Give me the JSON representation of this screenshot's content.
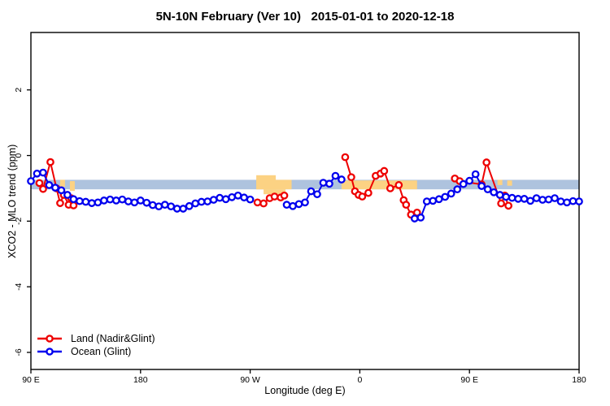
{
  "chart_data": {
    "type": "line",
    "title": "5N-10N February (Ver 10)   2015-01-01 to 2020-12-18",
    "xlabel": "Longitude (deg E)",
    "ylabel": "XCO2 - MLO trend (ppm)",
    "xlim": [
      90,
      540
    ],
    "ylim": [
      -6.52,
      3.75
    ],
    "grid": false,
    "legend_position": "bottom-left",
    "x_ticks": [
      {
        "pos": 90,
        "label": "90 E"
      },
      {
        "pos": 180,
        "label": "180"
      },
      {
        "pos": 270,
        "label": "90 W"
      },
      {
        "pos": 360,
        "label": "0"
      },
      {
        "pos": 450,
        "label": "90 E"
      },
      {
        "pos": 540,
        "label": "180"
      }
    ],
    "y_ticks": [
      {
        "pos": 2,
        "label": "2"
      },
      {
        "pos": 0,
        "label": "0"
      },
      {
        "pos": -2,
        "label": "-2"
      },
      {
        "pos": -4,
        "label": "-4"
      },
      {
        "pos": -6,
        "label": "-6"
      }
    ],
    "band": {
      "from": -0.74,
      "to": -1.03,
      "color": "#aec3de"
    },
    "patches": {
      "color": "#fcd283",
      "rects": [
        {
          "x1": 114,
          "x2": 118,
          "y1": -0.74,
          "y2": -0.95
        },
        {
          "x1": 122,
          "x2": 126,
          "y1": -0.78,
          "y2": -1.08
        },
        {
          "x1": 275,
          "x2": 291,
          "y1": -0.6,
          "y2": -1.03
        },
        {
          "x1": 275,
          "x2": 304,
          "y1": -0.74,
          "y2": -1.03
        },
        {
          "x1": 281,
          "x2": 299,
          "y1": -1.03,
          "y2": -1.18
        },
        {
          "x1": 345,
          "x2": 407,
          "y1": -0.76,
          "y2": -1.03
        },
        {
          "x1": 473,
          "x2": 477,
          "y1": -0.74,
          "y2": -0.9
        },
        {
          "x1": 481,
          "x2": 485,
          "y1": -0.76,
          "y2": -0.92
        }
      ]
    },
    "series": [
      {
        "name": "Land (Nadir&Glint)",
        "color": "#ee0000",
        "marker": "open-circle",
        "segments": [
          [
            [
              97,
              -0.84
            ],
            [
              100,
              -1.02
            ],
            [
              106,
              -0.2
            ],
            [
              111,
              -1.0
            ],
            [
              114,
              -1.45
            ],
            [
              117,
              -1.2
            ],
            [
              121,
              -1.5
            ],
            [
              123,
              -1.3
            ],
            [
              125,
              -1.52
            ]
          ],
          [
            [
              276,
              -1.43
            ],
            [
              281,
              -1.46
            ],
            [
              286,
              -1.3
            ],
            [
              290,
              -1.25
            ],
            [
              295,
              -1.28
            ],
            [
              298,
              -1.22
            ]
          ],
          [
            [
              348,
              -0.05
            ],
            [
              353,
              -0.66
            ],
            [
              356,
              -1.09
            ],
            [
              359,
              -1.2
            ],
            [
              362,
              -1.25
            ],
            [
              367,
              -1.14
            ],
            [
              373,
              -0.62
            ],
            [
              377,
              -0.55
            ],
            [
              380,
              -0.47
            ],
            [
              385,
              -1.0
            ],
            [
              392,
              -0.9
            ],
            [
              396,
              -1.36
            ],
            [
              398,
              -1.5
            ],
            [
              402,
              -1.8
            ],
            [
              407,
              -1.74
            ]
          ],
          [
            [
              438,
              -0.7
            ],
            [
              442,
              -0.78
            ],
            [
              460,
              -0.88
            ],
            [
              464,
              -0.21
            ],
            [
              476,
              -1.46
            ],
            [
              479,
              -1.22
            ],
            [
              482,
              -1.53
            ]
          ]
        ]
      },
      {
        "name": "Ocean (Glint)",
        "color": "#0000ee",
        "marker": "open-circle",
        "segments": [
          [
            [
              90,
              -0.78
            ],
            [
              95,
              -0.55
            ],
            [
              100,
              -0.52
            ],
            [
              105,
              -0.9
            ],
            [
              110,
              -0.98
            ],
            [
              115,
              -1.06
            ],
            [
              120,
              -1.2
            ],
            [
              125,
              -1.33
            ],
            [
              130,
              -1.39
            ],
            [
              135,
              -1.41
            ],
            [
              140,
              -1.45
            ],
            [
              145,
              -1.43
            ],
            [
              150,
              -1.37
            ],
            [
              155,
              -1.34
            ],
            [
              160,
              -1.37
            ],
            [
              165,
              -1.34
            ],
            [
              170,
              -1.4
            ],
            [
              175,
              -1.43
            ],
            [
              180,
              -1.37
            ],
            [
              185,
              -1.44
            ],
            [
              190,
              -1.51
            ],
            [
              195,
              -1.55
            ],
            [
              200,
              -1.5
            ],
            [
              205,
              -1.55
            ],
            [
              210,
              -1.62
            ],
            [
              215,
              -1.62
            ],
            [
              220,
              -1.54
            ],
            [
              225,
              -1.46
            ],
            [
              230,
              -1.41
            ],
            [
              235,
              -1.4
            ],
            [
              240,
              -1.35
            ],
            [
              245,
              -1.29
            ],
            [
              250,
              -1.33
            ],
            [
              255,
              -1.27
            ],
            [
              260,
              -1.22
            ],
            [
              265,
              -1.28
            ],
            [
              270,
              -1.34
            ]
          ],
          [
            [
              300,
              -1.5
            ],
            [
              305,
              -1.54
            ],
            [
              310,
              -1.48
            ],
            [
              315,
              -1.43
            ],
            [
              320,
              -1.09
            ],
            [
              325,
              -1.18
            ],
            [
              330,
              -0.83
            ],
            [
              335,
              -0.86
            ],
            [
              340,
              -0.62
            ],
            [
              345,
              -0.73
            ]
          ],
          [
            [
              405,
              -1.92
            ],
            [
              410,
              -1.89
            ],
            [
              415,
              -1.4
            ],
            [
              420,
              -1.38
            ],
            [
              425,
              -1.33
            ],
            [
              430,
              -1.26
            ],
            [
              435,
              -1.16
            ],
            [
              440,
              -1.03
            ],
            [
              445,
              -0.87
            ],
            [
              450,
              -0.77
            ],
            [
              455,
              -0.57
            ],
            [
              460,
              -0.93
            ],
            [
              465,
              -1.03
            ],
            [
              470,
              -1.12
            ],
            [
              475,
              -1.2
            ],
            [
              480,
              -1.26
            ],
            [
              485,
              -1.29
            ],
            [
              490,
              -1.32
            ],
            [
              495,
              -1.32
            ],
            [
              500,
              -1.38
            ],
            [
              505,
              -1.3
            ],
            [
              510,
              -1.35
            ],
            [
              515,
              -1.34
            ],
            [
              520,
              -1.3
            ],
            [
              525,
              -1.4
            ],
            [
              530,
              -1.43
            ],
            [
              535,
              -1.39
            ],
            [
              540,
              -1.4
            ]
          ]
        ]
      }
    ]
  }
}
